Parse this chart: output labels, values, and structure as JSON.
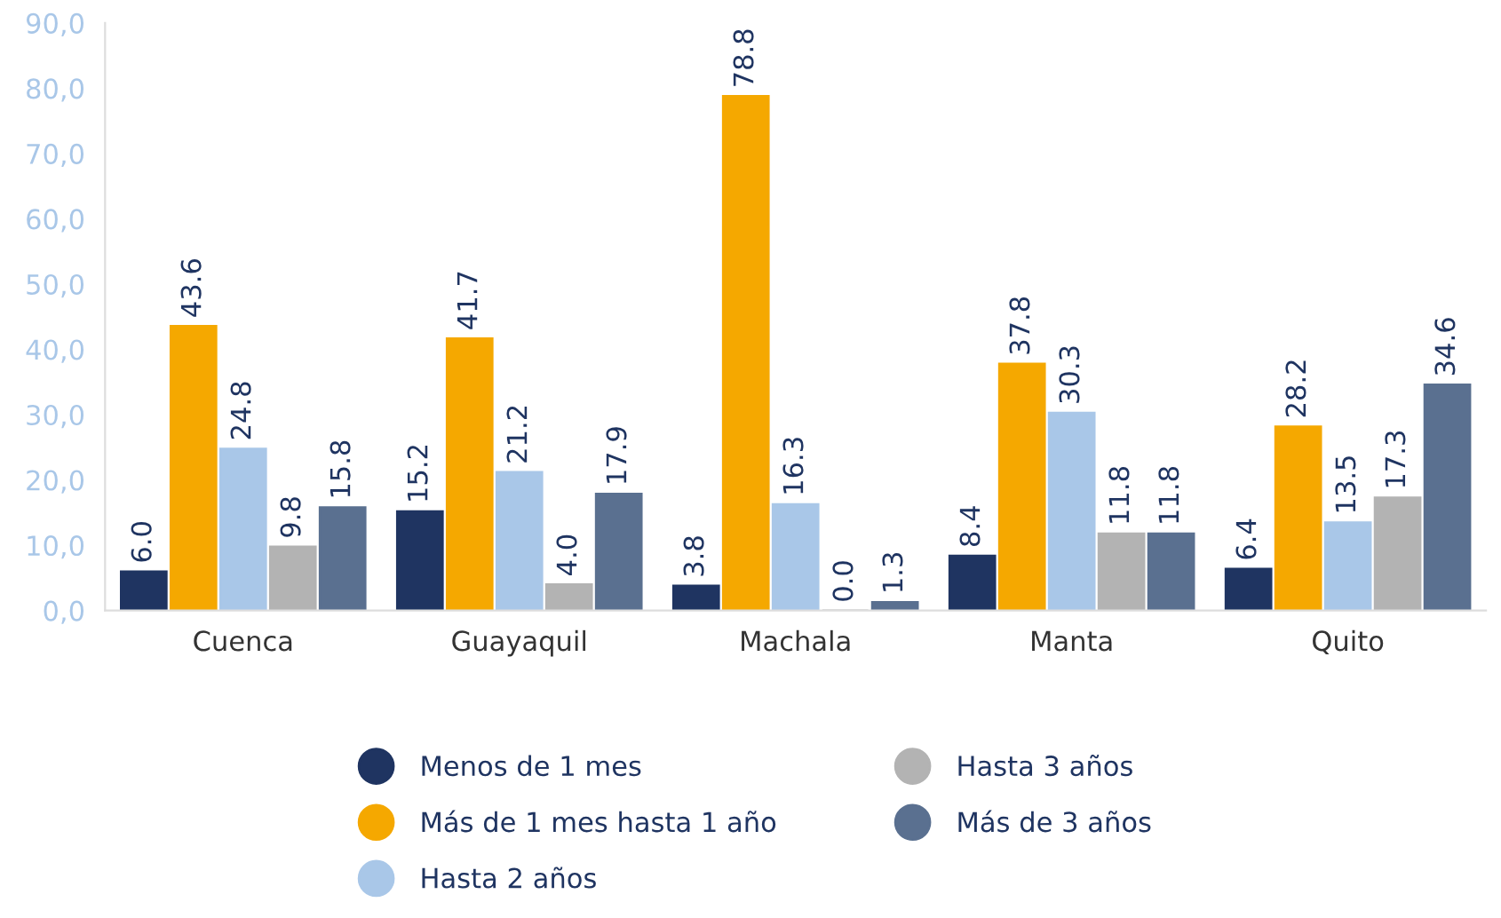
{
  "chart_data": {
    "type": "bar",
    "categories": [
      "Cuenca",
      "Guayaquil",
      "Machala",
      "Manta",
      "Quito"
    ],
    "series": [
      {
        "name": "Menos de 1 mes",
        "color": "#1f3461",
        "values": [
          6.0,
          15.2,
          3.8,
          8.4,
          6.4
        ],
        "value_labels": [
          "6.0",
          "15.2",
          "3.8",
          "8.4",
          "6.4"
        ]
      },
      {
        "name": "Más de 1 mes hasta 1 año",
        "color": "#f5a800",
        "values": [
          43.6,
          41.7,
          78.8,
          37.8,
          28.2
        ],
        "value_labels": [
          "43.6",
          "41.7",
          "78.8",
          "37.8",
          "28.2"
        ]
      },
      {
        "name": "Hasta 2 años",
        "color": "#a9c7e8",
        "values": [
          24.8,
          21.2,
          16.3,
          30.3,
          13.5
        ],
        "value_labels": [
          "24.8",
          "21.2",
          "16.3",
          "30.3",
          "13.5"
        ]
      },
      {
        "name": "Hasta 3 años",
        "color": "#b3b3b3",
        "values": [
          9.8,
          4.0,
          0.0,
          11.8,
          17.3
        ],
        "value_labels": [
          "9.8",
          "4.0",
          "0.0",
          "11.8",
          "17.3"
        ]
      },
      {
        "name": "Más de 3 años",
        "color": "#5a7090",
        "values": [
          15.8,
          17.9,
          1.3,
          11.8,
          34.6
        ],
        "value_labels": [
          "15.8",
          "17.9",
          "1.3",
          "11.8",
          "34.6"
        ]
      }
    ],
    "ylim": [
      0,
      90
    ],
    "yticks": [
      {
        "value": 0,
        "label": "0,0"
      },
      {
        "value": 10,
        "label": "10,0"
      },
      {
        "value": 20,
        "label": "20,0"
      },
      {
        "value": 30,
        "label": "30,0"
      },
      {
        "value": 40,
        "label": "40,0"
      },
      {
        "value": 50,
        "label": "50,0"
      },
      {
        "value": 60,
        "label": "60,0"
      },
      {
        "value": 70,
        "label": "70,0"
      },
      {
        "value": 80,
        "label": "80,0"
      },
      {
        "value": 90,
        "label": "90,0"
      }
    ],
    "grid": false,
    "legend": "bottom"
  }
}
